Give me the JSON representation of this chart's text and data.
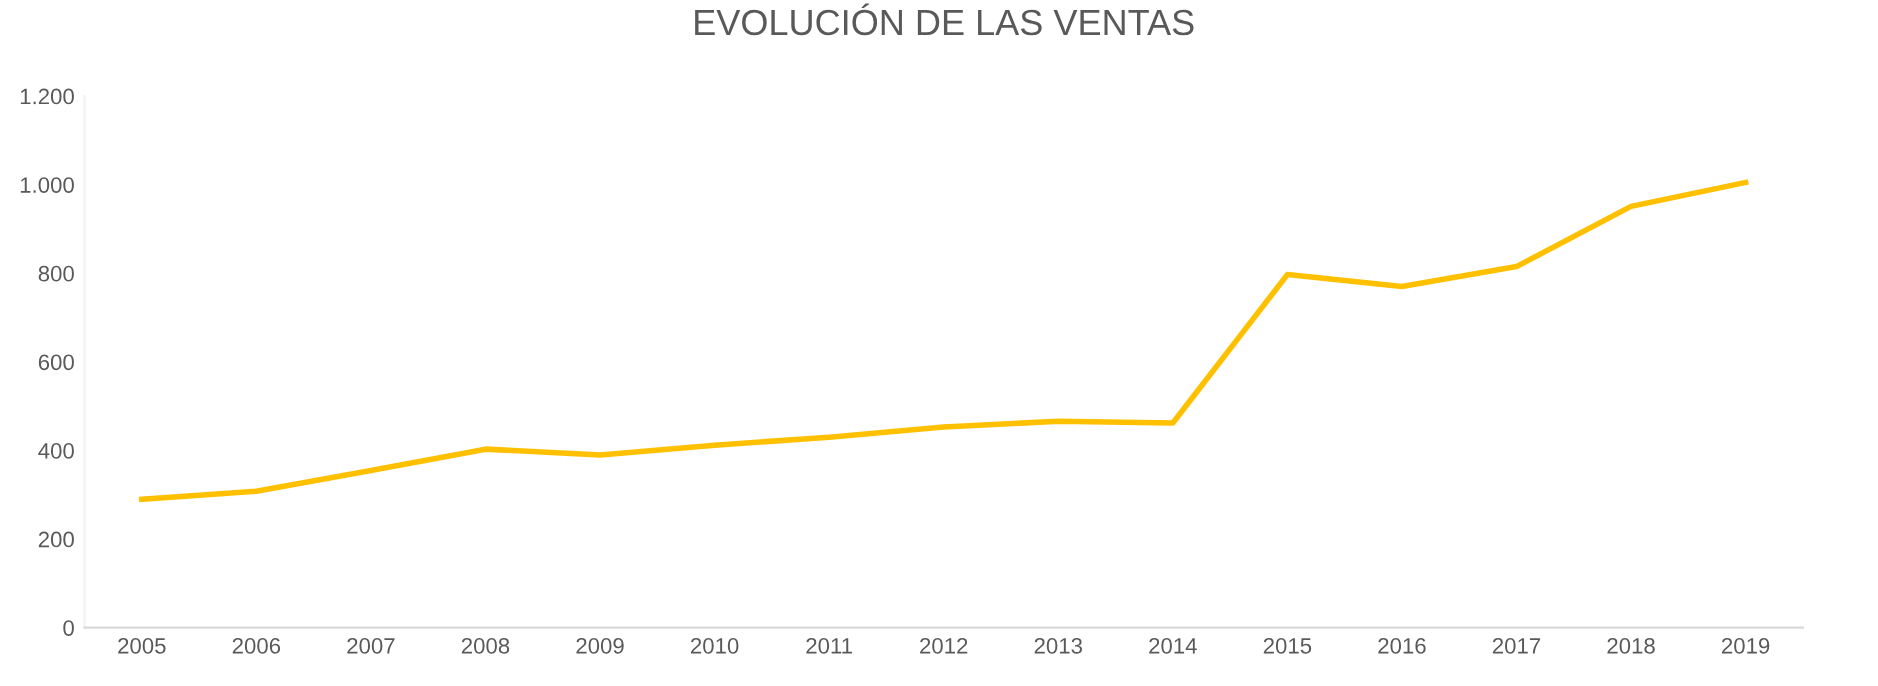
{
  "chart_data": {
    "type": "line",
    "title": "EVOLUCIÓN DE LAS VENTAS",
    "categories": [
      "2005",
      "2006",
      "2007",
      "2008",
      "2009",
      "2010",
      "2011",
      "2012",
      "2013",
      "2014",
      "2015",
      "2016",
      "2017",
      "2018",
      "2019"
    ],
    "series": [
      {
        "color": "#ffc000",
        "values": [
          290,
          308,
          355,
          403,
          390,
          412,
          430,
          453,
          466,
          462,
          797,
          770,
          815,
          951,
          1005
        ]
      }
    ],
    "ylim": [
      0,
      1200
    ],
    "yticks": [
      0,
      200,
      400,
      600,
      800,
      {
        "value": 1000,
        "label": "1.000"
      },
      {
        "value": 1200,
        "label": "1.200"
      }
    ],
    "grid": false,
    "marker": "none",
    "line_style": "solid"
  }
}
